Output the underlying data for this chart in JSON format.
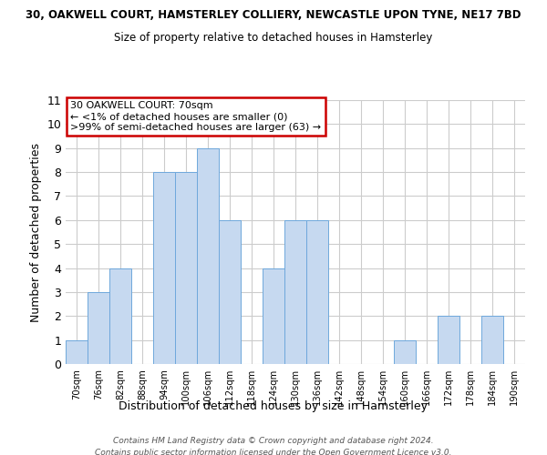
{
  "title_top": "30, OAKWELL COURT, HAMSTERLEY COLLIERY, NEWCASTLE UPON TYNE, NE17 7BD",
  "title_sub": "Size of property relative to detached houses in Hamsterley",
  "xlabel": "Distribution of detached houses by size in Hamsterley",
  "ylabel": "Number of detached properties",
  "bin_labels": [
    "70sqm",
    "76sqm",
    "82sqm",
    "88sqm",
    "94sqm",
    "100sqm",
    "106sqm",
    "112sqm",
    "118sqm",
    "124sqm",
    "130sqm",
    "136sqm",
    "142sqm",
    "148sqm",
    "154sqm",
    "160sqm",
    "166sqm",
    "172sqm",
    "178sqm",
    "184sqm",
    "190sqm"
  ],
  "bar_values": [
    1,
    3,
    4,
    0,
    8,
    8,
    9,
    6,
    0,
    4,
    6,
    6,
    0,
    0,
    0,
    1,
    0,
    2,
    0,
    2,
    0
  ],
  "bar_color": "#c6d9f0",
  "bar_edge_color": "#6fa8dc",
  "ylim": [
    0,
    11
  ],
  "yticks": [
    0,
    1,
    2,
    3,
    4,
    5,
    6,
    7,
    8,
    9,
    10,
    11
  ],
  "annotation_box_text": "30 OAKWELL COURT: 70sqm\n← <1% of detached houses are smaller (0)\n>99% of semi-detached houses are larger (63) →",
  "annotation_box_color": "#ffffff",
  "annotation_box_edge_color": "#cc0000",
  "footer_line1": "Contains HM Land Registry data © Crown copyright and database right 2024.",
  "footer_line2": "Contains public sector information licensed under the Open Government Licence v3.0.",
  "bg_color": "#ffffff",
  "grid_color": "#cccccc"
}
